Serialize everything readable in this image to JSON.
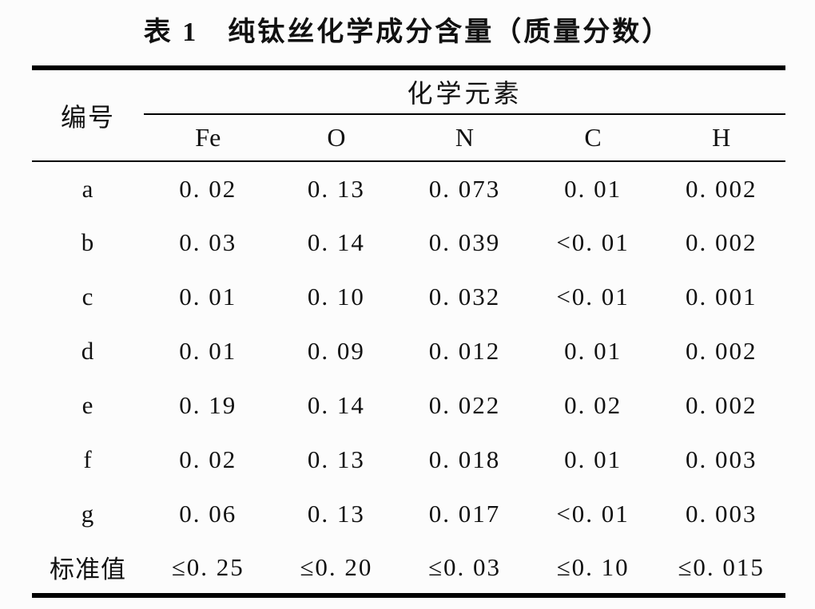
{
  "page": {
    "background_color": "#fcfcfc",
    "text_color": "#111111",
    "rule_color": "#000000"
  },
  "title": "表 1　纯钛丝化学成分含量（质量分数）",
  "table": {
    "row_header": "编号",
    "group_header": "化学元素",
    "columns": [
      "Fe",
      "O",
      "N",
      "C",
      "H"
    ],
    "rows": [
      {
        "label": "a",
        "values": [
          "0. 02",
          "0. 13",
          "0. 073",
          "0. 01",
          "0. 002"
        ]
      },
      {
        "label": "b",
        "values": [
          "0. 03",
          "0. 14",
          "0. 039",
          "<0. 01",
          "0. 002"
        ]
      },
      {
        "label": "c",
        "values": [
          "0. 01",
          "0. 10",
          "0. 032",
          "<0. 01",
          "0. 001"
        ]
      },
      {
        "label": "d",
        "values": [
          "0. 01",
          "0. 09",
          "0. 012",
          "0. 01",
          "0. 002"
        ]
      },
      {
        "label": "e",
        "values": [
          "0. 19",
          "0. 14",
          "0. 022",
          "0. 02",
          "0. 002"
        ]
      },
      {
        "label": "f",
        "values": [
          "0. 02",
          "0. 13",
          "0. 018",
          "0. 01",
          "0. 003"
        ]
      },
      {
        "label": "g",
        "values": [
          "0. 06",
          "0. 13",
          "0. 017",
          "<0. 01",
          "0. 003"
        ]
      },
      {
        "label": "标准值",
        "values": [
          "≤0. 25",
          "≤0. 20",
          "≤0. 03",
          "≤0. 10",
          "≤0. 015"
        ]
      }
    ]
  },
  "chart_data": {
    "type": "table",
    "title": "表 1 纯钛丝化学成分含量（质量分数）",
    "columns": [
      "编号",
      "Fe",
      "O",
      "N",
      "C",
      "H"
    ],
    "rows": [
      [
        "a",
        0.02,
        0.13,
        0.073,
        0.01,
        0.002
      ],
      [
        "b",
        0.03,
        0.14,
        0.039,
        "<0.01",
        0.002
      ],
      [
        "c",
        0.01,
        0.1,
        0.032,
        "<0.01",
        0.001
      ],
      [
        "d",
        0.01,
        0.09,
        0.012,
        0.01,
        0.002
      ],
      [
        "e",
        0.19,
        0.14,
        0.022,
        0.02,
        0.002
      ],
      [
        "f",
        0.02,
        0.13,
        0.018,
        0.01,
        0.003
      ],
      [
        "g",
        0.06,
        0.13,
        0.017,
        "<0.01",
        0.003
      ],
      [
        "标准值",
        "≤0.25",
        "≤0.20",
        "≤0.03",
        "≤0.10",
        "≤0.015"
      ]
    ]
  }
}
